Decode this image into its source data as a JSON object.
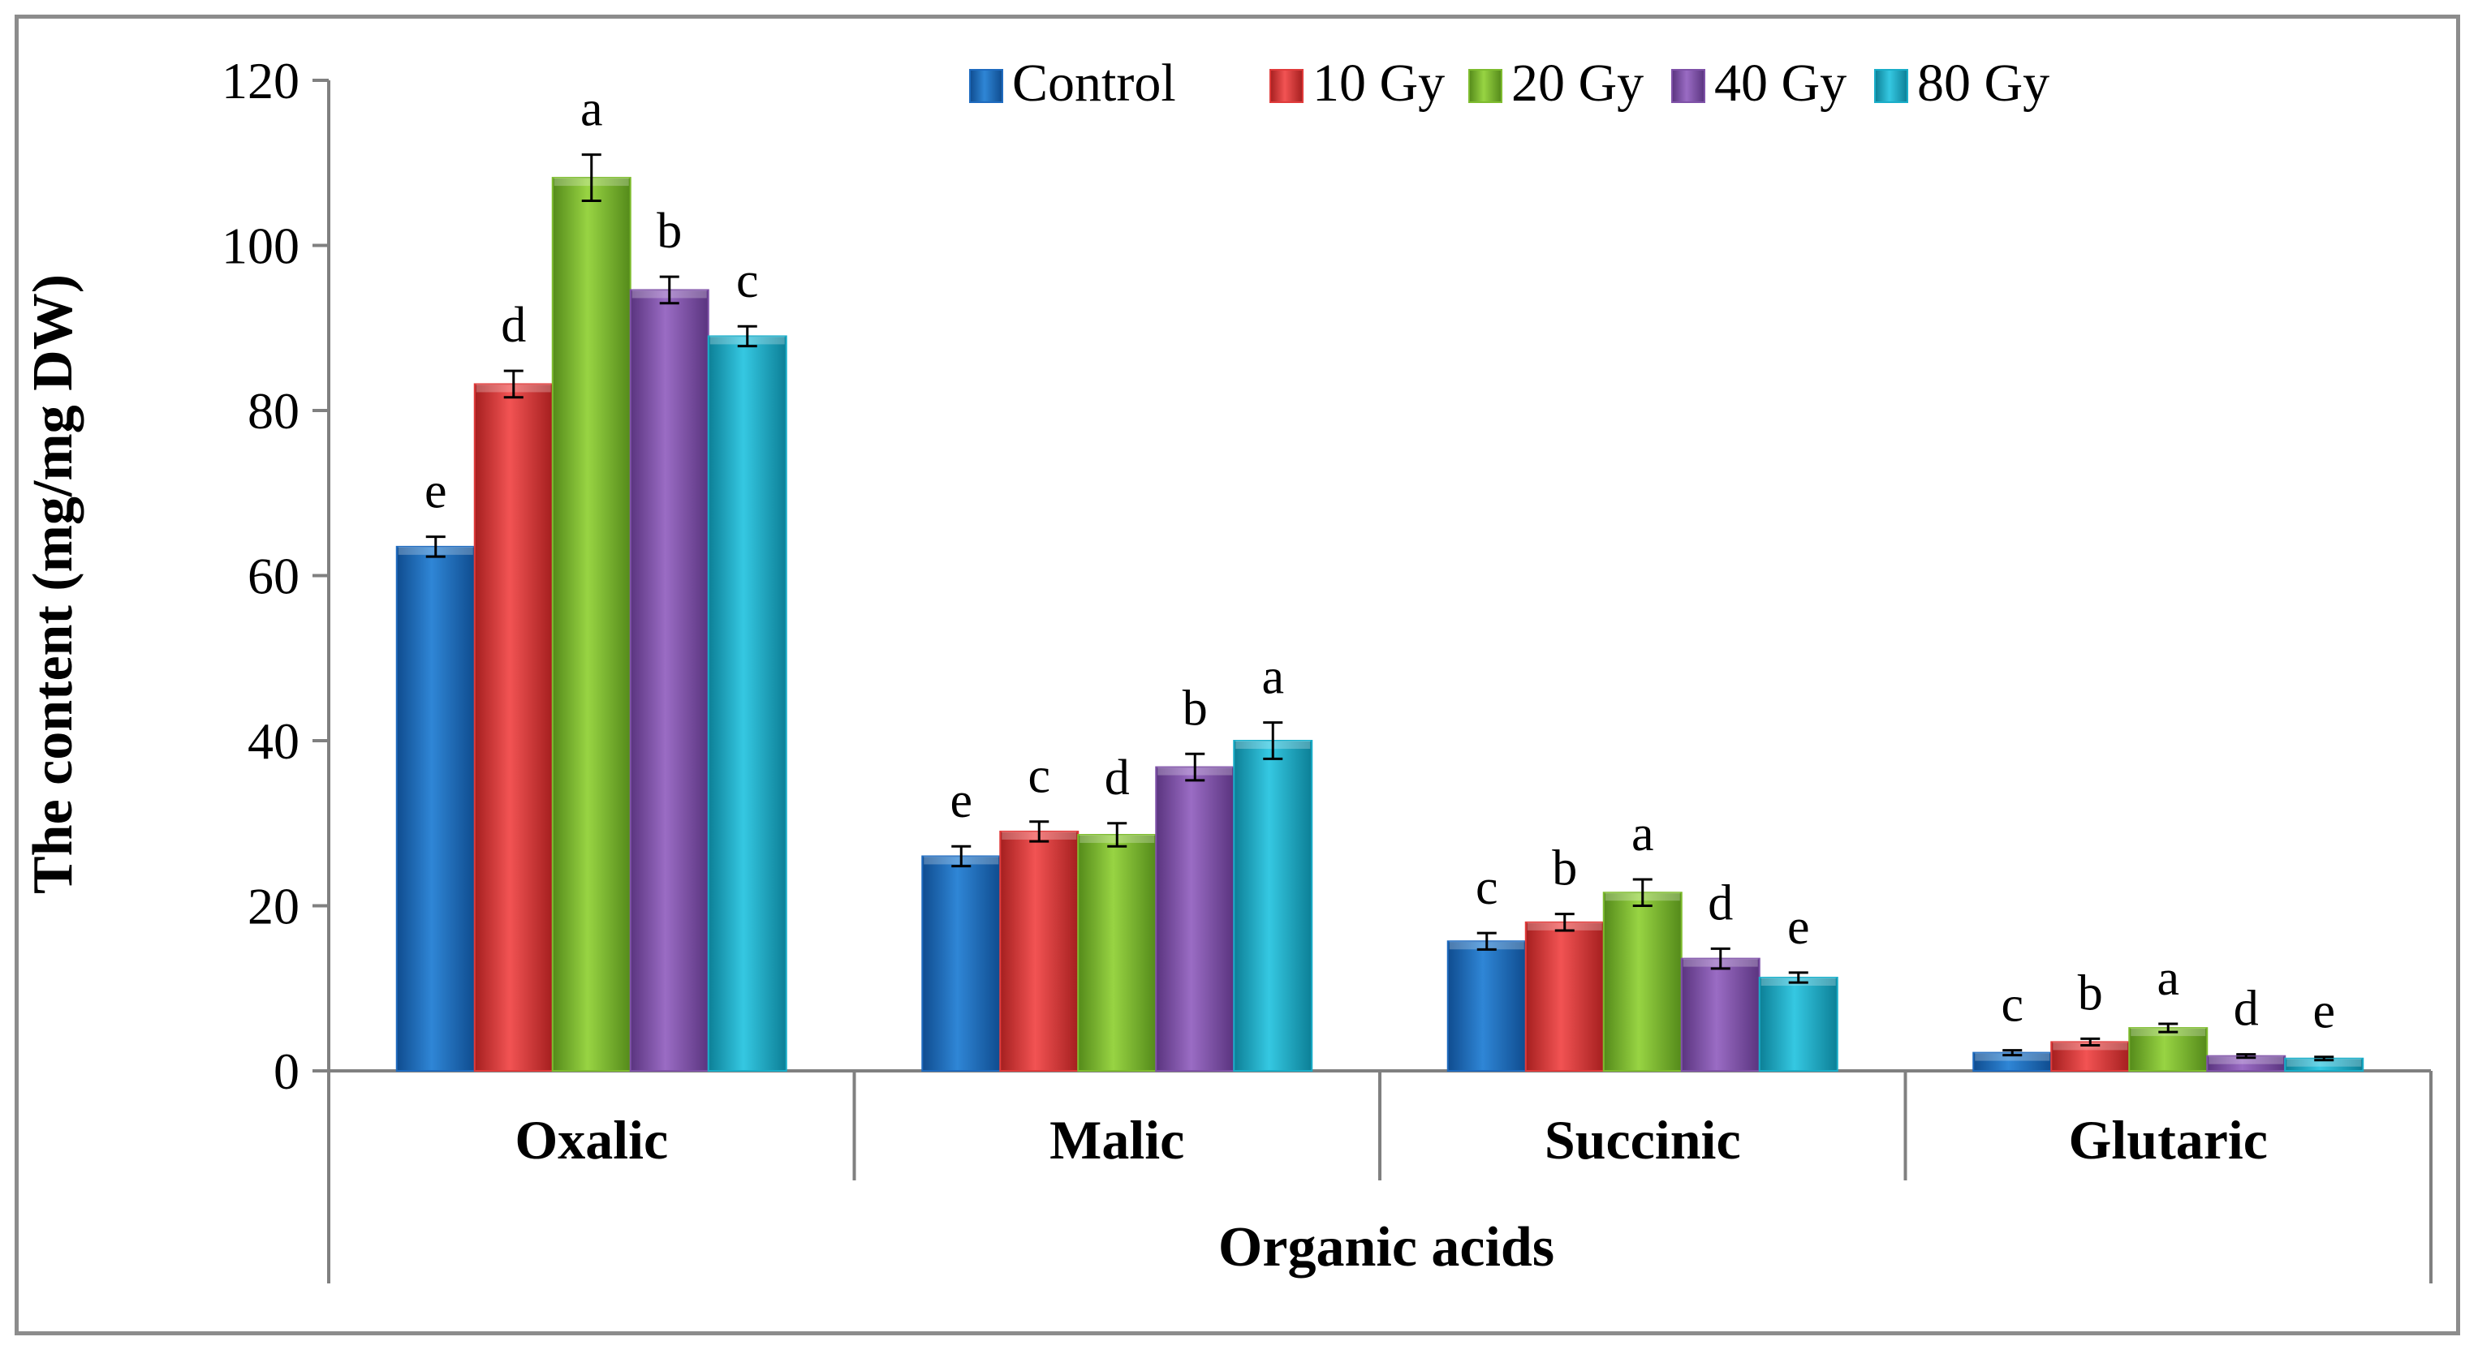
{
  "chart_data": {
    "type": "bar",
    "title": "",
    "xlabel": "Organic acids",
    "ylabel": "The content (mg/mg DW)",
    "ylim": [
      0,
      120
    ],
    "yticks": [
      0,
      20,
      40,
      60,
      80,
      100,
      120
    ],
    "categories": [
      "Oxalic",
      "Malic",
      "Succinic",
      "Glutaric"
    ],
    "legend_position": "top-right",
    "series": [
      {
        "name": "Control",
        "color": "#1f6bbf",
        "values": [
          63.5,
          26.0,
          15.7,
          2.2
        ],
        "errors": [
          1.2,
          1.2,
          1.0,
          0.3
        ],
        "letters": [
          "e",
          "e",
          "c",
          "c"
        ]
      },
      {
        "name": "10 Gy",
        "color": "#e03b3b",
        "values": [
          83.2,
          29.0,
          18.0,
          3.5
        ],
        "errors": [
          1.6,
          1.2,
          1.0,
          0.4
        ],
        "letters": [
          "d",
          "c",
          "b",
          "b"
        ]
      },
      {
        "name": "20 Gy",
        "color": "#7ebc2f",
        "values": [
          108.2,
          28.6,
          21.6,
          5.2
        ],
        "errors": [
          2.8,
          1.4,
          1.6,
          0.5
        ],
        "letters": [
          "a",
          "d",
          "a",
          "a"
        ]
      },
      {
        "name": "40 Gy",
        "color": "#7f52a8",
        "values": [
          94.6,
          36.8,
          13.6,
          1.8
        ],
        "errors": [
          1.6,
          1.6,
          1.2,
          0.2
        ],
        "letters": [
          "b",
          "b",
          "d",
          "d"
        ]
      },
      {
        "name": "80 Gy",
        "color": "#1aaec9",
        "values": [
          89.0,
          40.0,
          11.3,
          1.5
        ],
        "errors": [
          1.2,
          2.2,
          0.6,
          0.2
        ],
        "letters": [
          "c",
          "a",
          "e",
          "e"
        ]
      }
    ]
  }
}
